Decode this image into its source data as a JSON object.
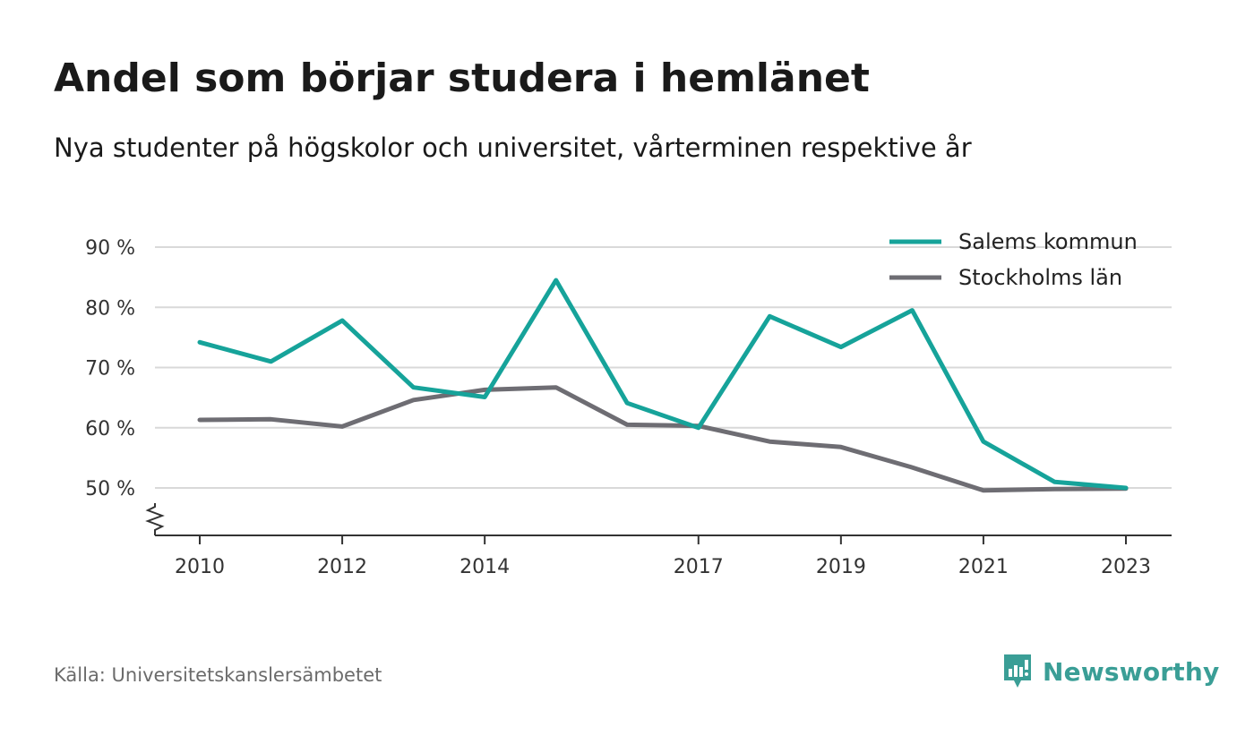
{
  "header": {
    "title": "Andel som börjar studera i hemlänet",
    "subtitle": "Nya studenter på högskolor och universitet, vårterminen respektive år"
  },
  "footer": {
    "source": "Källa: Universitetskanslersämbetet",
    "brand": "Newsworthy"
  },
  "colors": {
    "salem": "#16a39a",
    "stockholm": "#6e6d73",
    "grid": "#d9d9d9",
    "axis": "#333333",
    "brand": "#3a9e96"
  },
  "chart_data": {
    "type": "line",
    "x": [
      2010,
      2011,
      2012,
      2013,
      2014,
      2015,
      2016,
      2017,
      2018,
      2019,
      2020,
      2021,
      2022,
      2023
    ],
    "x_tick_values": [
      2010,
      2012,
      2014,
      2017,
      2019,
      2021,
      2023
    ],
    "x_tick_labels": [
      "2010",
      "2012",
      "2014",
      "2017",
      "2019",
      "2021",
      "2023"
    ],
    "y_tick_values": [
      50,
      60,
      70,
      80,
      90
    ],
    "y_tick_labels": [
      "50 %",
      "60 %",
      "70 %",
      "80 %",
      "90 %"
    ],
    "ylim": [
      42,
      92
    ],
    "xlim": [
      2009.4,
      2023.7
    ],
    "y_axis_break": true,
    "grid": true,
    "legend_position": "top-right",
    "series": [
      {
        "name": "Salems kommun",
        "color": "#16a39a",
        "values": [
          74.2,
          71.0,
          77.8,
          66.7,
          65.1,
          84.5,
          64.1,
          60.0,
          78.5,
          73.4,
          79.5,
          57.7,
          51.0,
          50.0
        ]
      },
      {
        "name": "Stockholms län",
        "color": "#6e6d73",
        "values": [
          61.3,
          61.4,
          60.2,
          64.6,
          66.3,
          66.7,
          60.5,
          60.3,
          57.7,
          56.8,
          53.4,
          49.6,
          49.8,
          49.9
        ]
      }
    ]
  }
}
